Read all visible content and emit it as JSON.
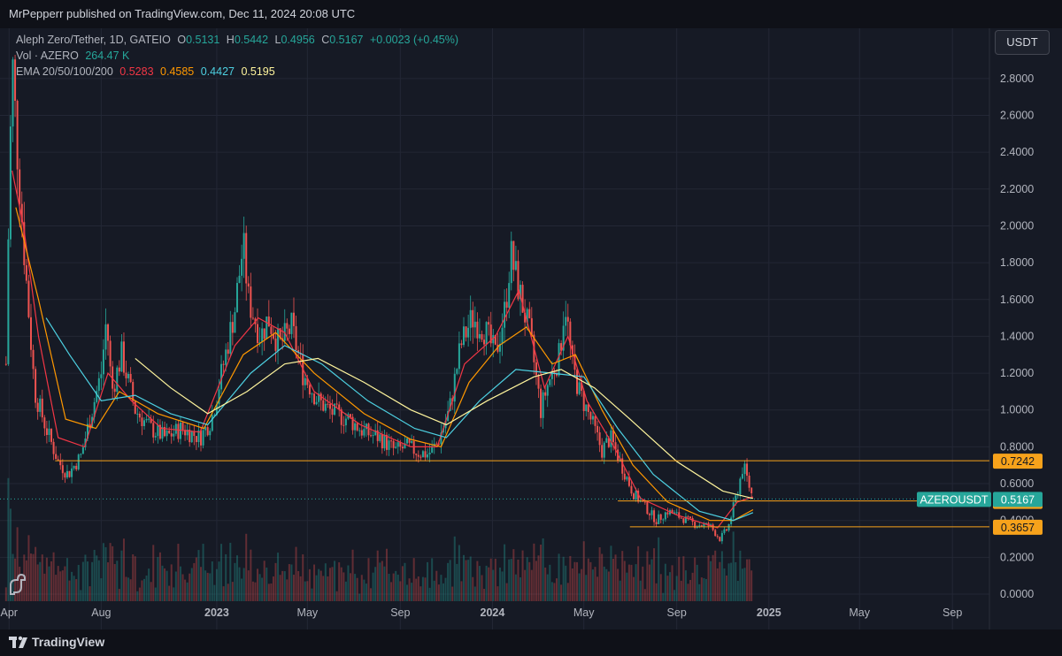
{
  "header": {
    "publisher": "MrPepperr published on TradingView.com, Dec 11, 2024 20:08 UTC"
  },
  "legend": {
    "symbol": "Aleph Zero/Tether, 1D, GATEIO",
    "o_label": "O",
    "o": "0.5131",
    "h_label": "H",
    "h": "0.5442",
    "l_label": "L",
    "l": "0.4956",
    "c_label": "C",
    "c": "0.5167",
    "change": "+0.0023 (+0.45%)",
    "vol_label": "Vol · AZERO",
    "vol": "264.47 K",
    "ema_label": "EMA 20/50/100/200",
    "ema20": "0.5283",
    "ema50": "0.4585",
    "ema100": "0.4427",
    "ema200": "0.5195"
  },
  "currency_button": "USDT",
  "footer": {
    "brand": "TradingView"
  },
  "colors": {
    "background": "#161a25",
    "up": "#26a69a",
    "down": "#ef5350",
    "ema20": "#f23645",
    "ema50": "#ff9800",
    "ema100": "#4dd0e1",
    "ema200": "#fff59d",
    "level_line": "#f7a21b",
    "price_label": "#26a69a"
  },
  "chart_data": {
    "type": "candlestick",
    "title": "Aleph Zero/Tether, 1D, GATEIO",
    "ylim": [
      0,
      2.9
    ],
    "y_ticks": [
      "2.8000",
      "2.6000",
      "2.4000",
      "2.2000",
      "2.0000",
      "1.8000",
      "1.6000",
      "1.4000",
      "1.2000",
      "1.0000",
      "0.8000",
      "0.6000",
      "0.4000",
      "0.2000",
      "0.0000"
    ],
    "x_ticks": [
      "Apr",
      "Aug",
      "2023",
      "May",
      "Sep",
      "2024",
      "May",
      "Sep",
      "2025",
      "May",
      "Sep"
    ],
    "x_ticks_dates": [
      "2022-04-01",
      "2022-08-01",
      "2023-01-01",
      "2023-05-01",
      "2023-09-01",
      "2024-01-01",
      "2024-05-01",
      "2024-09-01",
      "2025-01-01",
      "2025-05-01",
      "2025-09-01"
    ],
    "x_range": [
      "2022-03-20",
      "2025-10-20"
    ],
    "price_path": [
      {
        "date": "2022-03-28",
        "price": 1.25
      },
      {
        "date": "2022-04-02",
        "price": 2.4
      },
      {
        "date": "2022-04-06",
        "price": 2.85
      },
      {
        "date": "2022-04-12",
        "price": 2.4
      },
      {
        "date": "2022-04-22",
        "price": 1.8
      },
      {
        "date": "2022-05-05",
        "price": 1.1
      },
      {
        "date": "2022-05-20",
        "price": 0.9
      },
      {
        "date": "2022-06-05",
        "price": 0.72
      },
      {
        "date": "2022-06-18",
        "price": 0.65
      },
      {
        "date": "2022-07-05",
        "price": 0.75
      },
      {
        "date": "2022-07-20",
        "price": 1.0
      },
      {
        "date": "2022-08-01",
        "price": 1.2
      },
      {
        "date": "2022-08-08",
        "price": 1.5
      },
      {
        "date": "2022-08-15",
        "price": 1.1
      },
      {
        "date": "2022-08-28",
        "price": 1.3
      },
      {
        "date": "2022-09-15",
        "price": 1.0
      },
      {
        "date": "2022-10-05",
        "price": 0.9
      },
      {
        "date": "2022-10-25",
        "price": 0.85
      },
      {
        "date": "2022-11-15",
        "price": 0.9
      },
      {
        "date": "2022-12-10",
        "price": 0.85
      },
      {
        "date": "2022-12-25",
        "price": 0.95
      },
      {
        "date": "2023-01-10",
        "price": 1.25
      },
      {
        "date": "2023-01-25",
        "price": 1.55
      },
      {
        "date": "2023-02-05",
        "price": 1.9
      },
      {
        "date": "2023-02-12",
        "price": 1.6
      },
      {
        "date": "2023-02-28",
        "price": 1.4
      },
      {
        "date": "2023-03-10",
        "price": 1.5
      },
      {
        "date": "2023-03-25",
        "price": 1.35
      },
      {
        "date": "2023-04-10",
        "price": 1.45
      },
      {
        "date": "2023-04-25",
        "price": 1.2
      },
      {
        "date": "2023-05-15",
        "price": 1.05
      },
      {
        "date": "2023-06-05",
        "price": 0.98
      },
      {
        "date": "2023-06-25",
        "price": 0.95
      },
      {
        "date": "2023-07-15",
        "price": 0.88
      },
      {
        "date": "2023-08-05",
        "price": 0.85
      },
      {
        "date": "2023-08-25",
        "price": 0.78
      },
      {
        "date": "2023-09-10",
        "price": 0.8
      },
      {
        "date": "2023-09-25",
        "price": 0.77
      },
      {
        "date": "2023-10-08",
        "price": 0.76
      },
      {
        "date": "2023-10-20",
        "price": 0.82
      },
      {
        "date": "2023-11-05",
        "price": 1.0
      },
      {
        "date": "2023-11-20",
        "price": 1.35
      },
      {
        "date": "2023-12-05",
        "price": 1.5
      },
      {
        "date": "2023-12-20",
        "price": 1.45
      },
      {
        "date": "2024-01-05",
        "price": 1.3
      },
      {
        "date": "2024-01-18",
        "price": 1.55
      },
      {
        "date": "2024-01-25",
        "price": 1.85
      },
      {
        "date": "2024-02-08",
        "price": 1.6
      },
      {
        "date": "2024-02-20",
        "price": 1.4
      },
      {
        "date": "2024-03-05",
        "price": 1.0
      },
      {
        "date": "2024-03-15",
        "price": 1.15
      },
      {
        "date": "2024-03-30",
        "price": 1.3
      },
      {
        "date": "2024-04-06",
        "price": 1.6
      },
      {
        "date": "2024-04-15",
        "price": 1.25
      },
      {
        "date": "2024-04-25",
        "price": 1.1
      },
      {
        "date": "2024-05-10",
        "price": 0.95
      },
      {
        "date": "2024-05-25",
        "price": 0.78
      },
      {
        "date": "2024-06-05",
        "price": 0.85
      },
      {
        "date": "2024-06-20",
        "price": 0.7
      },
      {
        "date": "2024-07-05",
        "price": 0.55
      },
      {
        "date": "2024-07-20",
        "price": 0.48
      },
      {
        "date": "2024-08-05",
        "price": 0.4
      },
      {
        "date": "2024-08-20",
        "price": 0.45
      },
      {
        "date": "2024-09-05",
        "price": 0.42
      },
      {
        "date": "2024-09-25",
        "price": 0.38
      },
      {
        "date": "2024-10-15",
        "price": 0.37
      },
      {
        "date": "2024-10-28",
        "price": 0.3
      },
      {
        "date": "2024-11-08",
        "price": 0.36
      },
      {
        "date": "2024-11-20",
        "price": 0.55
      },
      {
        "date": "2024-11-28",
        "price": 0.7
      },
      {
        "date": "2024-12-05",
        "price": 0.6
      },
      {
        "date": "2024-12-11",
        "price": 0.5167
      }
    ],
    "ema_lines": [
      {
        "name": "EMA 20",
        "color": "#f23645",
        "points": [
          {
            "date": "2022-04-05",
            "price": 2.3
          },
          {
            "date": "2022-04-20",
            "price": 2.0
          },
          {
            "date": "2022-05-10",
            "price": 1.4
          },
          {
            "date": "2022-06-05",
            "price": 0.85
          },
          {
            "date": "2022-07-10",
            "price": 0.8
          },
          {
            "date": "2022-08-10",
            "price": 1.2
          },
          {
            "date": "2022-09-10",
            "price": 1.05
          },
          {
            "date": "2022-10-20",
            "price": 0.9
          },
          {
            "date": "2022-12-10",
            "price": 0.88
          },
          {
            "date": "2023-01-25",
            "price": 1.35
          },
          {
            "date": "2023-02-25",
            "price": 1.5
          },
          {
            "date": "2023-04-01",
            "price": 1.42
          },
          {
            "date": "2023-05-10",
            "price": 1.1
          },
          {
            "date": "2023-07-10",
            "price": 0.92
          },
          {
            "date": "2023-09-15",
            "price": 0.8
          },
          {
            "date": "2023-10-20",
            "price": 0.8
          },
          {
            "date": "2023-11-25",
            "price": 1.25
          },
          {
            "date": "2024-01-05",
            "price": 1.4
          },
          {
            "date": "2024-02-05",
            "price": 1.65
          },
          {
            "date": "2024-03-10",
            "price": 1.12
          },
          {
            "date": "2024-04-10",
            "price": 1.4
          },
          {
            "date": "2024-05-05",
            "price": 1.05
          },
          {
            "date": "2024-06-10",
            "price": 0.8
          },
          {
            "date": "2024-07-15",
            "price": 0.52
          },
          {
            "date": "2024-09-01",
            "price": 0.43
          },
          {
            "date": "2024-10-25",
            "price": 0.36
          },
          {
            "date": "2024-11-20",
            "price": 0.5
          },
          {
            "date": "2024-12-11",
            "price": 0.5283
          }
        ]
      },
      {
        "name": "EMA 50",
        "color": "#ff9800",
        "points": [
          {
            "date": "2022-04-10",
            "price": 2.1
          },
          {
            "date": "2022-05-10",
            "price": 1.6
          },
          {
            "date": "2022-06-15",
            "price": 0.95
          },
          {
            "date": "2022-07-25",
            "price": 0.9
          },
          {
            "date": "2022-08-25",
            "price": 1.1
          },
          {
            "date": "2022-10-15",
            "price": 0.98
          },
          {
            "date": "2022-12-15",
            "price": 0.9
          },
          {
            "date": "2023-02-05",
            "price": 1.3
          },
          {
            "date": "2023-03-20",
            "price": 1.42
          },
          {
            "date": "2023-05-10",
            "price": 1.2
          },
          {
            "date": "2023-07-15",
            "price": 0.98
          },
          {
            "date": "2023-09-15",
            "price": 0.84
          },
          {
            "date": "2023-10-25",
            "price": 0.8
          },
          {
            "date": "2023-12-01",
            "price": 1.15
          },
          {
            "date": "2024-01-10",
            "price": 1.35
          },
          {
            "date": "2024-02-15",
            "price": 1.45
          },
          {
            "date": "2024-03-20",
            "price": 1.25
          },
          {
            "date": "2024-04-20",
            "price": 1.3
          },
          {
            "date": "2024-05-25",
            "price": 1.0
          },
          {
            "date": "2024-07-05",
            "price": 0.7
          },
          {
            "date": "2024-08-20",
            "price": 0.5
          },
          {
            "date": "2024-10-15",
            "price": 0.4
          },
          {
            "date": "2024-11-15",
            "price": 0.4
          },
          {
            "date": "2024-12-11",
            "price": 0.4585
          }
        ]
      },
      {
        "name": "EMA 100",
        "color": "#4dd0e1",
        "points": [
          {
            "date": "2022-05-20",
            "price": 1.5
          },
          {
            "date": "2022-06-20",
            "price": 1.3
          },
          {
            "date": "2022-08-01",
            "price": 1.05
          },
          {
            "date": "2022-09-15",
            "price": 1.08
          },
          {
            "date": "2022-11-01",
            "price": 0.98
          },
          {
            "date": "2022-12-20",
            "price": 0.92
          },
          {
            "date": "2023-02-15",
            "price": 1.2
          },
          {
            "date": "2023-04-01",
            "price": 1.35
          },
          {
            "date": "2023-05-20",
            "price": 1.25
          },
          {
            "date": "2023-07-20",
            "price": 1.05
          },
          {
            "date": "2023-09-20",
            "price": 0.9
          },
          {
            "date": "2023-11-01",
            "price": 0.85
          },
          {
            "date": "2023-12-15",
            "price": 1.05
          },
          {
            "date": "2024-02-01",
            "price": 1.22
          },
          {
            "date": "2024-03-20",
            "price": 1.2
          },
          {
            "date": "2024-05-01",
            "price": 1.18
          },
          {
            "date": "2024-06-15",
            "price": 0.9
          },
          {
            "date": "2024-08-01",
            "price": 0.65
          },
          {
            "date": "2024-10-01",
            "price": 0.45
          },
          {
            "date": "2024-11-15",
            "price": 0.4
          },
          {
            "date": "2024-12-11",
            "price": 0.4427
          }
        ]
      },
      {
        "name": "EMA 200",
        "color": "#fff59d",
        "points": [
          {
            "date": "2022-09-15",
            "price": 1.28
          },
          {
            "date": "2022-11-01",
            "price": 1.12
          },
          {
            "date": "2022-12-20",
            "price": 0.98
          },
          {
            "date": "2023-02-10",
            "price": 1.1
          },
          {
            "date": "2023-04-01",
            "price": 1.25
          },
          {
            "date": "2023-05-15",
            "price": 1.28
          },
          {
            "date": "2023-07-15",
            "price": 1.15
          },
          {
            "date": "2023-09-15",
            "price": 1.0
          },
          {
            "date": "2023-11-01",
            "price": 0.92
          },
          {
            "date": "2023-12-25",
            "price": 1.05
          },
          {
            "date": "2024-02-25",
            "price": 1.18
          },
          {
            "date": "2024-04-01",
            "price": 1.22
          },
          {
            "date": "2024-05-15",
            "price": 1.12
          },
          {
            "date": "2024-07-01",
            "price": 0.95
          },
          {
            "date": "2024-09-01",
            "price": 0.72
          },
          {
            "date": "2024-11-01",
            "price": 0.56
          },
          {
            "date": "2024-12-11",
            "price": 0.5195
          }
        ]
      }
    ],
    "horizontal_levels": [
      {
        "label": "0.7242",
        "value": 0.7242,
        "from": "2022-06-01"
      },
      {
        "label": "0.5059",
        "value": 0.5059,
        "from": "2024-06-15"
      },
      {
        "label": "0.3657",
        "value": 0.3657,
        "from": "2024-07-01"
      }
    ],
    "current_price": {
      "symbol": "AZEROUSDT",
      "value": 0.5167,
      "label": "0.5167"
    },
    "volume_scale_max": 1
  }
}
